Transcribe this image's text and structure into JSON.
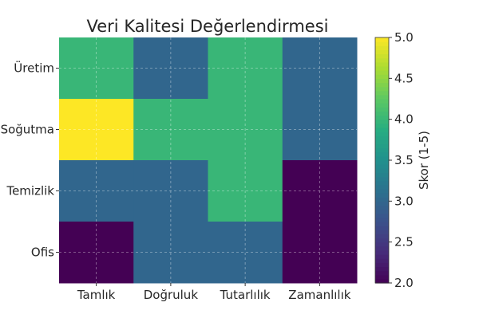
{
  "chart_data": {
    "type": "heatmap",
    "title": "Veri Kalitesi Değerlendirmesi",
    "x_categories": [
      "Tamlık",
      "Doğruluk",
      "Tutarlılık",
      "Zamanlılık"
    ],
    "y_categories": [
      "Üretim",
      "Soğutma",
      "Temizlik",
      "Ofis"
    ],
    "values": [
      [
        4,
        3,
        4,
        3
      ],
      [
        5,
        4,
        4,
        3
      ],
      [
        3,
        3,
        4,
        2
      ],
      [
        2,
        3,
        3,
        2
      ]
    ],
    "colormap": "viridis",
    "vmin": 2.0,
    "vmax": 5.0,
    "colorbar": {
      "label": "Skor (1-5)",
      "ticks": [
        "2.0",
        "2.5",
        "3.0",
        "3.5",
        "4.0",
        "4.5",
        "5.0"
      ]
    },
    "grid": true
  }
}
